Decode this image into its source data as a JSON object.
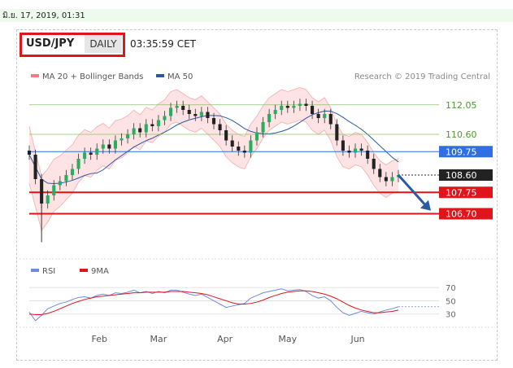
{
  "header": {
    "datetime": "มิ.ย. 17, 2019, 01:31",
    "symbol": "USD/JPY",
    "period": "DAILY",
    "time": "03:35:59 CET"
  },
  "colors": {
    "up_candle": "#27ae60",
    "down_candle": "#222222",
    "bollinger_line": "#f08080",
    "bollinger_fill": "#fde3e3",
    "ma50": "#2c5aa0",
    "resistance_line": "#8cc068",
    "pivot_blue": "#2f6fdf",
    "support_red": "#e0151c",
    "label_black": "#222222",
    "arrow": "#2c5aa0",
    "rsi": "#6c8ce0",
    "rsi_ma": "#e0151c"
  },
  "chart_data": {
    "type": "line",
    "title": "USD/JPY",
    "source": "Research © 2019 Trading Central",
    "legend": [
      {
        "name": "MA 20 + Bollinger Bands",
        "color": "#f08080"
      },
      {
        "name": "MA 50",
        "color": "#2c5aa0"
      }
    ],
    "x_labels": [
      "Feb",
      "Mar",
      "Apr",
      "May",
      "Jun"
    ],
    "y_range": [
      105.2,
      113.0
    ],
    "levels": [
      {
        "label": "112.05",
        "value": 112.05,
        "style": "green-text"
      },
      {
        "label": "110.60",
        "value": 110.6,
        "style": "green-text"
      },
      {
        "label": "109.75",
        "value": 109.75,
        "style": "blue-box"
      },
      {
        "label": "108.60",
        "value": 108.6,
        "style": "black-box"
      },
      {
        "label": "107.75",
        "value": 107.75,
        "style": "red-box"
      },
      {
        "label": "106.70",
        "value": 106.7,
        "style": "red-box"
      }
    ],
    "close_series": [
      109.6,
      108.4,
      107.2,
      107.6,
      108.1,
      108.3,
      108.6,
      108.9,
      109.4,
      109.7,
      109.6,
      109.9,
      110.1,
      109.9,
      110.3,
      110.4,
      110.6,
      110.9,
      110.7,
      111.1,
      111.0,
      111.3,
      111.5,
      111.9,
      112.0,
      111.8,
      111.6,
      111.5,
      111.7,
      111.4,
      111.1,
      110.8,
      110.3,
      110.0,
      109.8,
      109.7,
      110.3,
      110.7,
      111.2,
      111.6,
      111.8,
      112.0,
      111.9,
      112.0,
      112.1,
      112.0,
      111.6,
      111.4,
      111.6,
      111.1,
      110.3,
      109.8,
      109.7,
      109.9,
      109.8,
      109.4,
      108.9,
      108.5,
      108.3,
      108.5,
      108.6
    ],
    "rsi": {
      "legend": [
        {
          "name": "RSI",
          "color": "#6c8ce0"
        },
        {
          "name": "9MA",
          "color": "#e0151c"
        }
      ],
      "levels": [
        70,
        50,
        30
      ],
      "y_range": [
        10,
        80
      ],
      "values": [
        33,
        20,
        28,
        38,
        42,
        46,
        48,
        52,
        55,
        56,
        54,
        58,
        60,
        58,
        62,
        61,
        63,
        66,
        62,
        64,
        61,
        64,
        62,
        66,
        66,
        63,
        60,
        58,
        60,
        55,
        50,
        45,
        40,
        42,
        44,
        46,
        54,
        58,
        62,
        64,
        66,
        68,
        65,
        66,
        67,
        64,
        58,
        54,
        56,
        50,
        40,
        32,
        28,
        31,
        34,
        32,
        30,
        33,
        36,
        38,
        41
      ],
      "ma_values": [
        30,
        29,
        29,
        31,
        34,
        38,
        42,
        46,
        49,
        52,
        54,
        56,
        57,
        58,
        59,
        60,
        61,
        62,
        62,
        63,
        63,
        63,
        63,
        64,
        64,
        64,
        63,
        62,
        61,
        59,
        56,
        53,
        50,
        47,
        45,
        45,
        46,
        48,
        51,
        55,
        58,
        61,
        63,
        64,
        65,
        65,
        64,
        62,
        60,
        57,
        53,
        48,
        43,
        39,
        36,
        34,
        32,
        32,
        33,
        34,
        36
      ]
    }
  }
}
